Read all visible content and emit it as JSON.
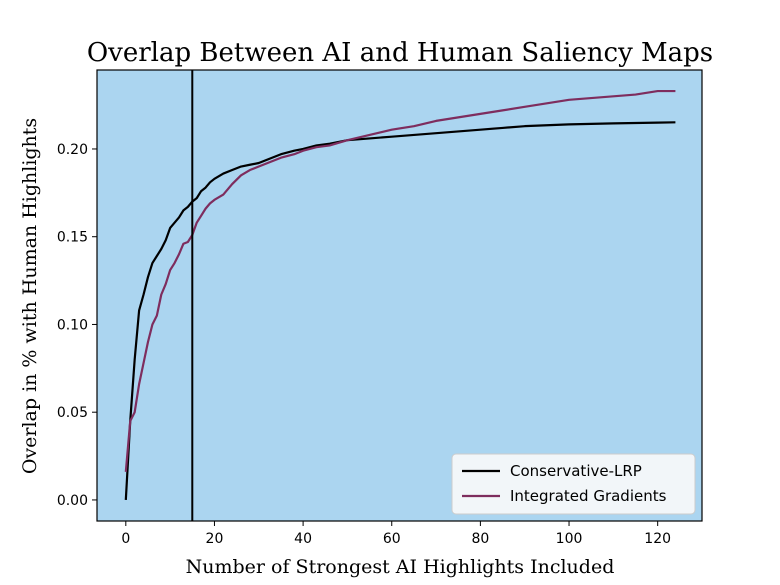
{
  "chart_data": {
    "type": "line",
    "title": "Overlap Between AI and Human Saliency Maps",
    "xlabel": "Number of Strongest AI Highlights Included",
    "ylabel": "Overlap in % with Human Highlights",
    "xlim": [
      -6.5,
      130
    ],
    "ylim": [
      -0.012,
      0.245
    ],
    "xticks": [
      0,
      20,
      40,
      60,
      80,
      100,
      120
    ],
    "yticks": [
      0.0,
      0.05,
      0.1,
      0.15,
      0.2
    ],
    "ytick_labels": [
      "0.00",
      "0.05",
      "0.10",
      "0.15",
      "0.20"
    ],
    "vline_x": 15,
    "background_color": "#abd5f0",
    "legend_position": "lower-right",
    "series": [
      {
        "name": "Conservative-LRP",
        "color": "#000000",
        "x": [
          0,
          1,
          2,
          3,
          4,
          5,
          6,
          7,
          8,
          9,
          10,
          11,
          12,
          13,
          14,
          15,
          16,
          17,
          18,
          19,
          20,
          22,
          24,
          26,
          28,
          30,
          32,
          35,
          38,
          40,
          43,
          46,
          50,
          55,
          60,
          65,
          70,
          75,
          80,
          85,
          90,
          95,
          100,
          105,
          110,
          115,
          120,
          124
        ],
        "y": [
          0.0,
          0.045,
          0.08,
          0.108,
          0.117,
          0.127,
          0.135,
          0.139,
          0.143,
          0.148,
          0.155,
          0.158,
          0.161,
          0.165,
          0.167,
          0.17,
          0.172,
          0.176,
          0.178,
          0.181,
          0.183,
          0.186,
          0.188,
          0.19,
          0.191,
          0.192,
          0.194,
          0.197,
          0.199,
          0.2,
          0.202,
          0.203,
          0.205,
          0.206,
          0.207,
          0.208,
          0.209,
          0.21,
          0.211,
          0.212,
          0.213,
          0.2135,
          0.214,
          0.2143,
          0.2146,
          0.2148,
          0.215,
          0.2152
        ]
      },
      {
        "name": "Integrated Gradients",
        "color": "#7e2d5e",
        "x": [
          0,
          1,
          2,
          3,
          4,
          5,
          6,
          7,
          8,
          9,
          10,
          11,
          12,
          13,
          14,
          15,
          16,
          17,
          18,
          19,
          20,
          22,
          24,
          26,
          28,
          30,
          32,
          35,
          38,
          40,
          43,
          46,
          50,
          55,
          60,
          65,
          70,
          75,
          80,
          85,
          90,
          95,
          100,
          105,
          110,
          115,
          120,
          124
        ],
        "y": [
          0.016,
          0.045,
          0.05,
          0.066,
          0.078,
          0.09,
          0.1,
          0.105,
          0.117,
          0.123,
          0.131,
          0.135,
          0.14,
          0.146,
          0.147,
          0.151,
          0.158,
          0.162,
          0.166,
          0.169,
          0.171,
          0.174,
          0.18,
          0.185,
          0.188,
          0.19,
          0.192,
          0.195,
          0.197,
          0.199,
          0.201,
          0.202,
          0.205,
          0.208,
          0.211,
          0.213,
          0.216,
          0.218,
          0.22,
          0.222,
          0.224,
          0.226,
          0.228,
          0.229,
          0.23,
          0.231,
          0.233,
          0.233
        ]
      }
    ]
  }
}
